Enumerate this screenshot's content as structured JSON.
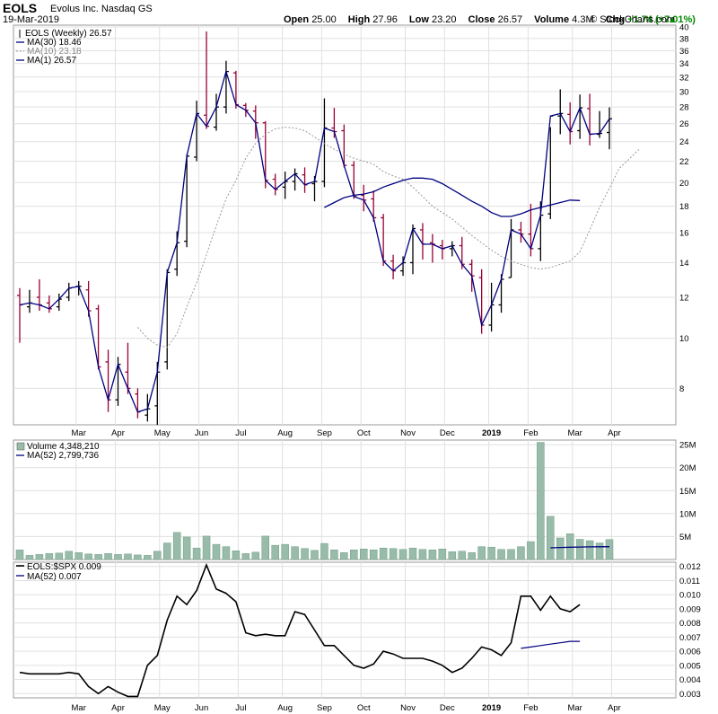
{
  "header": {
    "ticker": "EOLS",
    "company": "Evolus Inc. Nasdaq GS",
    "date": "19-Mar-2019",
    "copyright": "© StockCharts.com",
    "open_label": "Open",
    "open": "25.00",
    "high_label": "High",
    "high": "27.96",
    "low_label": "Low",
    "low": "23.20",
    "close_label": "Close",
    "close": "26.57",
    "volume_label": "Volume",
    "volume": "4.3M",
    "chg_label": "Chg",
    "chg": "+1.74 (+7.01%)"
  },
  "colors": {
    "up": "#000000",
    "down": "#990033",
    "ma_dark": "#000080",
    "ma_light": "#999999",
    "volume": "#99bbaa",
    "grid": "#e0e0e0"
  },
  "chart_data": [
    {
      "type": "ohlc",
      "legend": [
        "EOLS (Weekly) 26.57",
        "MA(30) 18.46",
        "MA(10) 23.18",
        "MA(1) 26.57"
      ],
      "y_scale": "log",
      "ylim": [
        6.8,
        40
      ],
      "y_ticks": [
        8,
        10,
        12,
        14,
        16,
        18,
        20,
        22,
        24,
        26,
        28,
        30,
        32,
        34,
        36,
        38,
        40
      ],
      "x_labels": [
        "Mar",
        "Apr",
        "May",
        "Jun",
        "Jul",
        "Aug",
        "Sep",
        "Oct",
        "Nov",
        "Dec",
        "2019",
        "Feb",
        "Mar",
        "Apr"
      ],
      "x_label_week": [
        6,
        10,
        14.5,
        18.5,
        22.5,
        27,
        31,
        35,
        39.5,
        43.5,
        48,
        52,
        56.5,
        60.5
      ],
      "series": [
        {
          "name": "EOLS (Weekly)",
          "values": [
            [
              12.1,
              12.5,
              9.8,
              11.6
            ],
            [
              11.5,
              12.4,
              11.2,
              11.7
            ],
            [
              12.0,
              13.0,
              11.3,
              11.6
            ],
            [
              11.7,
              12.1,
              11.2,
              11.4
            ],
            [
              11.5,
              12.2,
              11.3,
              11.9
            ],
            [
              12.0,
              12.8,
              11.8,
              12.5
            ],
            [
              12.6,
              12.9,
              12.1,
              12.6
            ],
            [
              12.4,
              12.9,
              11.0,
              11.3
            ],
            [
              11.4,
              11.6,
              8.7,
              8.8
            ],
            [
              9.0,
              9.5,
              7.2,
              7.6
            ],
            [
              7.6,
              9.2,
              7.4,
              8.9
            ],
            [
              8.6,
              9.8,
              7.8,
              8.0
            ],
            [
              7.8,
              8.0,
              7.0,
              7.2
            ],
            [
              7.1,
              7.8,
              6.9,
              7.3
            ],
            [
              7.4,
              9.0,
              6.8,
              8.6
            ],
            [
              9.0,
              13.6,
              8.7,
              13.4
            ],
            [
              13.6,
              16.1,
              13.2,
              15.3
            ],
            [
              15.4,
              22.7,
              15.0,
              22.5
            ],
            [
              22.4,
              28.8,
              22.0,
              27.2
            ],
            [
              27.0,
              39.2,
              25.4,
              25.7
            ],
            [
              25.6,
              29.7,
              25.2,
              28.0
            ],
            [
              28.0,
              34.4,
              27.2,
              32.8
            ],
            [
              32.6,
              32.9,
              27.8,
              28.3
            ],
            [
              28.2,
              28.5,
              26.8,
              27.6
            ],
            [
              27.5,
              28.2,
              24.3,
              26.1
            ],
            [
              26.1,
              26.3,
              19.5,
              20.2
            ],
            [
              20.3,
              20.8,
              18.9,
              19.4
            ],
            [
              19.6,
              21.0,
              18.6,
              20.1
            ],
            [
              20.1,
              21.3,
              19.3,
              20.8
            ],
            [
              20.7,
              21.4,
              19.1,
              19.8
            ],
            [
              19.9,
              20.6,
              18.4,
              20.1
            ],
            [
              20.1,
              29.1,
              19.6,
              25.5
            ],
            [
              25.5,
              27.9,
              24.4,
              25.1
            ],
            [
              25.2,
              25.9,
              21.4,
              21.6
            ],
            [
              21.6,
              22.0,
              18.6,
              18.8
            ],
            [
              18.9,
              19.8,
              17.6,
              18.5
            ],
            [
              18.6,
              19.3,
              16.8,
              17.1
            ],
            [
              17.1,
              17.4,
              13.8,
              14.1
            ],
            [
              14.1,
              14.5,
              13.0,
              13.5
            ],
            [
              13.5,
              14.4,
              13.2,
              14.0
            ],
            [
              14.0,
              16.6,
              13.3,
              16.3
            ],
            [
              16.2,
              16.7,
              14.2,
              15.2
            ],
            [
              15.3,
              15.9,
              14.0,
              15.2
            ],
            [
              15.1,
              15.5,
              14.2,
              14.9
            ],
            [
              14.9,
              15.4,
              14.4,
              15.1
            ],
            [
              15.1,
              15.7,
              13.6,
              13.9
            ],
            [
              13.9,
              14.2,
              12.3,
              13.2
            ],
            [
              13.1,
              13.6,
              10.2,
              10.6
            ],
            [
              10.6,
              12.8,
              10.3,
              11.6
            ],
            [
              11.6,
              13.3,
              11.2,
              13.0
            ],
            [
              13.1,
              17.0,
              13.1,
              16.2
            ],
            [
              16.2,
              16.8,
              15.3,
              15.9
            ],
            [
              15.9,
              18.2,
              14.4,
              14.9
            ],
            [
              14.9,
              18.4,
              14.1,
              17.3
            ],
            [
              17.4,
              25.6,
              17.0,
              26.9
            ],
            [
              26.9,
              30.3,
              24.8,
              27.2
            ],
            [
              27.1,
              28.6,
              23.7,
              25.1
            ],
            [
              25.2,
              29.6,
              24.3,
              27.9
            ],
            [
              27.8,
              29.7,
              23.6,
              24.8
            ],
            [
              24.8,
              27.5,
              24.4,
              24.9
            ],
            [
              25.0,
              27.96,
              23.2,
              26.57
            ]
          ]
        },
        {
          "name": "MA(10)",
          "start_week": 12,
          "values": [
            10.5,
            10.0,
            9.7,
            9.6,
            10.2,
            11.5,
            12.8,
            14.5,
            16.5,
            18.6,
            20.2,
            22.3,
            23.8,
            24.8,
            25.4,
            25.6,
            25.5,
            25.2,
            24.5,
            23.8,
            23.2,
            22.7,
            22.3,
            22.0,
            21.7,
            21.0,
            20.6,
            20.3,
            19.6,
            18.8,
            18.0,
            17.5,
            17.0,
            16.4,
            15.8,
            15.3,
            14.8,
            14.4,
            14.1,
            13.9,
            13.7,
            13.6,
            13.7,
            13.9,
            14.1,
            14.7,
            16.2,
            17.9,
            19.5,
            21.3,
            22.2,
            23.18
          ]
        },
        {
          "name": "MA(30)",
          "start_week": 31,
          "values": [
            17.9,
            18.3,
            18.7,
            18.9,
            19.0,
            19.2,
            19.6,
            19.9,
            20.2,
            20.4,
            20.4,
            20.3,
            19.9,
            19.4,
            18.9,
            18.4,
            18.0,
            17.5,
            17.2,
            17.2,
            17.4,
            17.7,
            17.9,
            18.1,
            18.3,
            18.5,
            18.46
          ]
        }
      ]
    },
    {
      "type": "bar",
      "legend": [
        "Volume 4,348,210",
        "MA(52) 2,799,736"
      ],
      "ylim": [
        0,
        26000000
      ],
      "y_tick_labels": [
        "5M",
        "10M",
        "15M",
        "20M",
        "25M"
      ],
      "y_ticks": [
        5000000,
        10000000,
        15000000,
        20000000,
        25000000
      ],
      "series": [
        {
          "name": "Volume",
          "values": [
            2.1,
            0.9,
            1.1,
            1.3,
            1.4,
            1.8,
            1.5,
            1.2,
            1.1,
            1.3,
            1.1,
            1.2,
            1.0,
            0.9,
            1.8,
            3.6,
            5.9,
            4.9,
            2.5,
            5.1,
            3.3,
            2.8,
            1.9,
            1.3,
            1.6,
            5.1,
            3.1,
            3.3,
            2.8,
            2.4,
            2.0,
            3.5,
            2.1,
            1.5,
            2.1,
            2.3,
            2.1,
            2.5,
            2.4,
            2.2,
            2.5,
            2.2,
            2.1,
            2.3,
            1.7,
            1.8,
            1.5,
            2.8,
            2.7,
            2.2,
            2.2,
            2.8,
            3.9,
            25.5,
            9.4,
            4.7,
            5.6,
            4.4,
            4.1,
            3.6,
            4.35
          ]
        },
        {
          "name": "MA(52)",
          "start_week": 54,
          "values": [
            2.55,
            2.62,
            2.68,
            2.72,
            2.76,
            2.78,
            2.8
          ]
        }
      ]
    },
    {
      "type": "line",
      "legend": [
        "EOLS:$SPX 0.009",
        "MA(52) 0.007"
      ],
      "ylim": [
        0.0027,
        0.0123
      ],
      "y_ticks": [
        0.003,
        0.004,
        0.005,
        0.006,
        0.007,
        0.008,
        0.009,
        0.01,
        0.011,
        0.012
      ],
      "series": [
        {
          "name": "EOLS:$SPX",
          "values": [
            0.0045,
            0.0044,
            0.0044,
            0.0044,
            0.0044,
            0.0045,
            0.0044,
            0.0035,
            0.003,
            0.0035,
            0.0031,
            0.0028,
            0.0028,
            0.005,
            0.0057,
            0.0082,
            0.0099,
            0.0093,
            0.0103,
            0.0121,
            0.0104,
            0.0101,
            0.0095,
            0.0073,
            0.0071,
            0.0072,
            0.0071,
            0.0071,
            0.0088,
            0.0086,
            0.0075,
            0.0064,
            0.0064,
            0.0057,
            0.005,
            0.0048,
            0.0051,
            0.006,
            0.0058,
            0.0055,
            0.0055,
            0.0055,
            0.0053,
            0.005,
            0.0045,
            0.0048,
            0.0055,
            0.0063,
            0.0061,
            0.0057,
            0.0066,
            0.0099,
            0.0099,
            0.0089,
            0.0099,
            0.009,
            0.0088,
            0.0093
          ]
        },
        {
          "name": "MA(52)",
          "start_week": 51,
          "values": [
            0.0062,
            0.0063,
            0.0064,
            0.0065,
            0.0066,
            0.0067,
            0.0067
          ]
        }
      ]
    }
  ]
}
